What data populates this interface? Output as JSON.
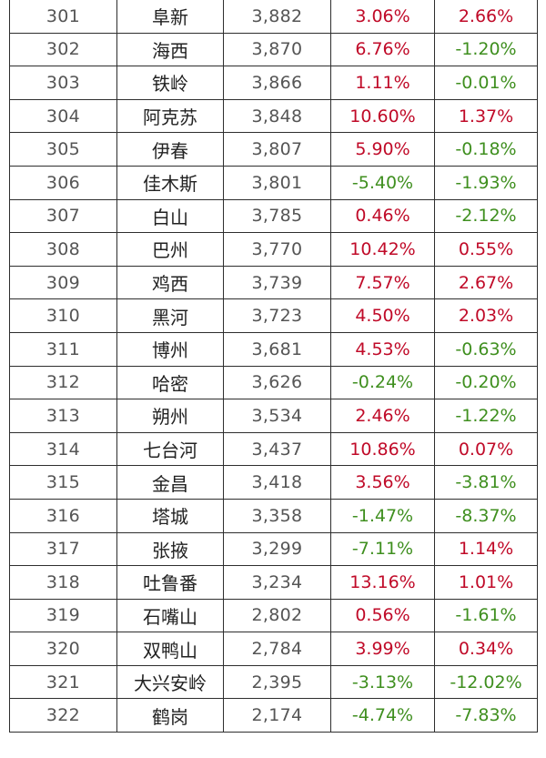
{
  "colors": {
    "positive": "#c00a28",
    "negative": "#3f8f1f",
    "border": "#2e2e2e"
  },
  "rows": [
    {
      "rank": "301",
      "city": "阜新",
      "value": "3,882",
      "growth1": "3.06%",
      "growth2": "2.66%"
    },
    {
      "rank": "302",
      "city": "海西",
      "value": "3,870",
      "growth1": "6.76%",
      "growth2": "-1.20%"
    },
    {
      "rank": "303",
      "city": "铁岭",
      "value": "3,866",
      "growth1": "1.11%",
      "growth2": "-0.01%"
    },
    {
      "rank": "304",
      "city": "阿克苏",
      "value": "3,848",
      "growth1": "10.60%",
      "growth2": "1.37%"
    },
    {
      "rank": "305",
      "city": "伊春",
      "value": "3,807",
      "growth1": "5.90%",
      "growth2": "-0.18%"
    },
    {
      "rank": "306",
      "city": "佳木斯",
      "value": "3,801",
      "growth1": "-5.40%",
      "growth2": "-1.93%"
    },
    {
      "rank": "307",
      "city": "白山",
      "value": "3,785",
      "growth1": "0.46%",
      "growth2": "-2.12%"
    },
    {
      "rank": "308",
      "city": "巴州",
      "value": "3,770",
      "growth1": "10.42%",
      "growth2": "0.55%"
    },
    {
      "rank": "309",
      "city": "鸡西",
      "value": "3,739",
      "growth1": "7.57%",
      "growth2": "2.67%"
    },
    {
      "rank": "310",
      "city": "黑河",
      "value": "3,723",
      "growth1": "4.50%",
      "growth2": "2.03%"
    },
    {
      "rank": "311",
      "city": "博州",
      "value": "3,681",
      "growth1": "4.53%",
      "growth2": "-0.63%"
    },
    {
      "rank": "312",
      "city": "哈密",
      "value": "3,626",
      "growth1": "-0.24%",
      "growth2": "-0.20%"
    },
    {
      "rank": "313",
      "city": "朔州",
      "value": "3,534",
      "growth1": "2.46%",
      "growth2": "-1.22%"
    },
    {
      "rank": "314",
      "city": "七台河",
      "value": "3,437",
      "growth1": "10.86%",
      "growth2": "0.07%"
    },
    {
      "rank": "315",
      "city": "金昌",
      "value": "3,418",
      "growth1": "3.56%",
      "growth2": "-3.81%"
    },
    {
      "rank": "316",
      "city": "塔城",
      "value": "3,358",
      "growth1": "-1.47%",
      "growth2": "-8.37%"
    },
    {
      "rank": "317",
      "city": "张掖",
      "value": "3,299",
      "growth1": "-7.11%",
      "growth2": "1.14%"
    },
    {
      "rank": "318",
      "city": "吐鲁番",
      "value": "3,234",
      "growth1": "13.16%",
      "growth2": "1.01%"
    },
    {
      "rank": "319",
      "city": "石嘴山",
      "value": "2,802",
      "growth1": "0.56%",
      "growth2": "-1.61%"
    },
    {
      "rank": "320",
      "city": "双鸭山",
      "value": "2,784",
      "growth1": "3.99%",
      "growth2": "0.34%"
    },
    {
      "rank": "321",
      "city": "大兴安岭",
      "value": "2,395",
      "growth1": "-3.13%",
      "growth2": "-12.02%"
    },
    {
      "rank": "322",
      "city": "鹤岗",
      "value": "2,174",
      "growth1": "-4.74%",
      "growth2": "-7.83%"
    }
  ]
}
